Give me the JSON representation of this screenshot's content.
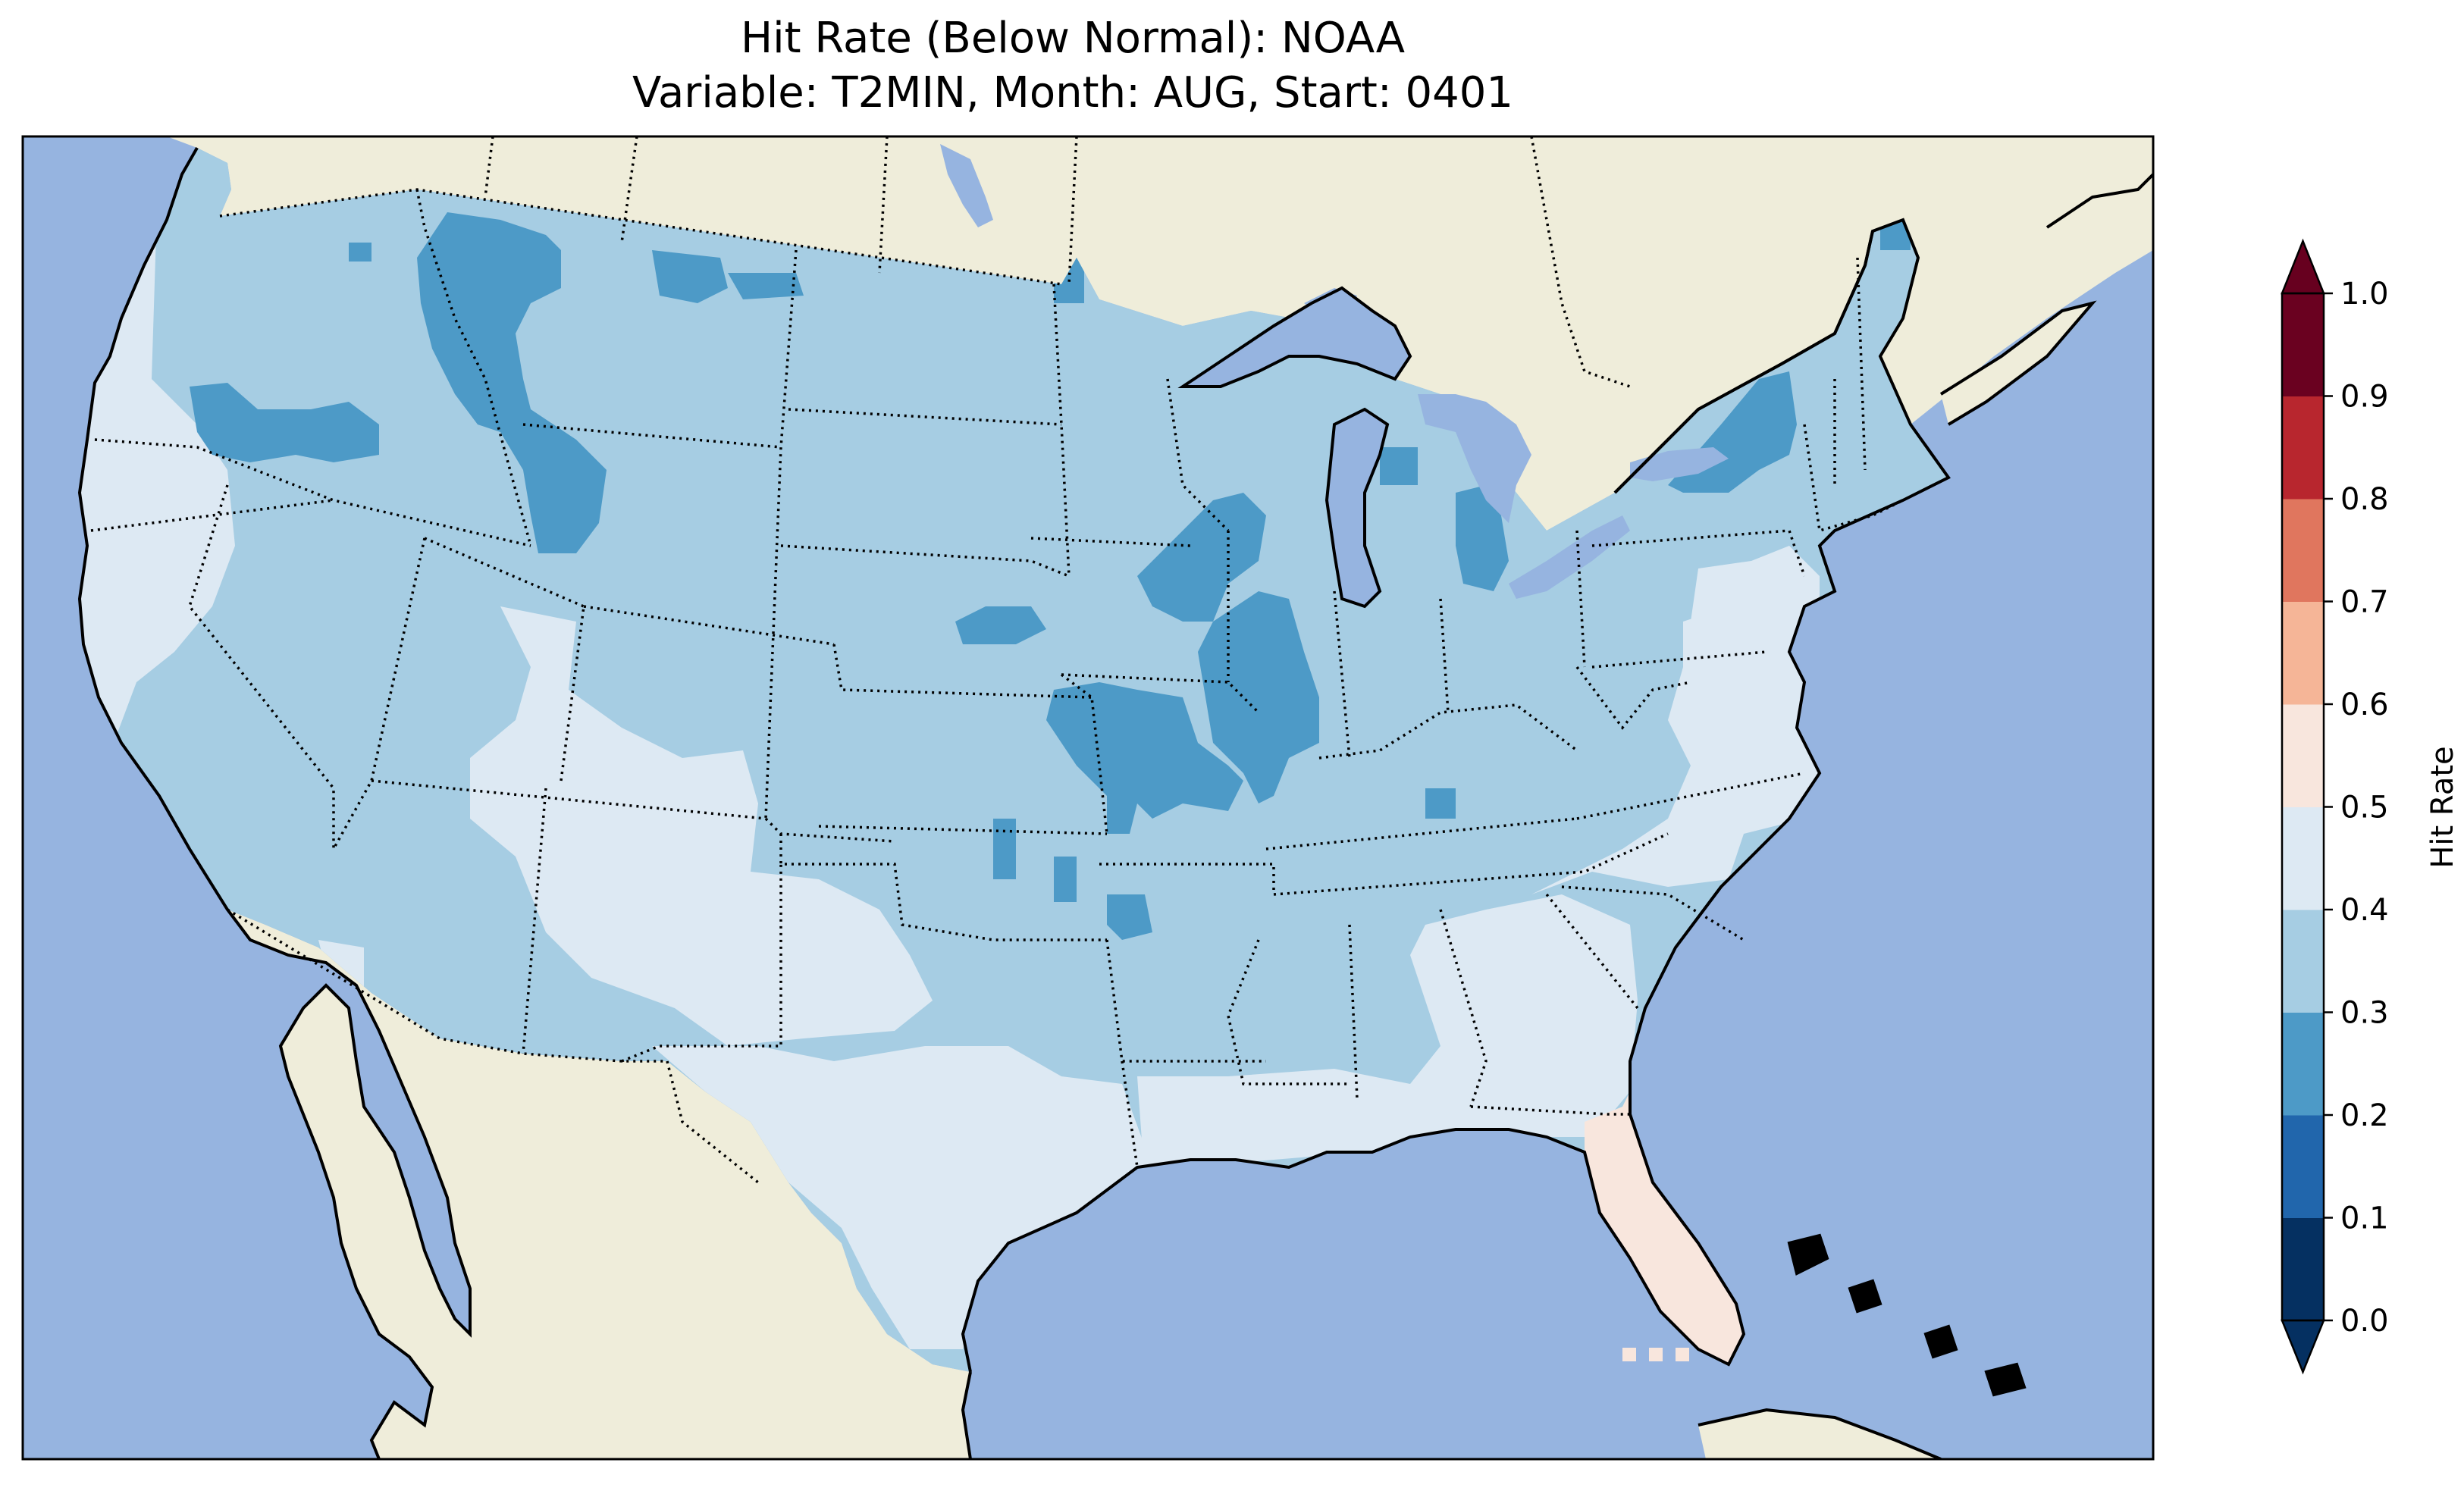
{
  "title_lines": [
    "Hit Rate (Below Normal): NOAA",
    "Variable: T2MIN, Month: AUG, Start: 0401"
  ],
  "colors": {
    "ocean": "#96b4e0",
    "land": "#efedda",
    "lake": "#96b4e0",
    "coast": "#000000",
    "border": "#000000"
  },
  "colorbar": {
    "label": "Hit Rate",
    "extend": "both",
    "levels": [
      0.0,
      0.1,
      0.2,
      0.3,
      0.4,
      0.5,
      0.6,
      0.7,
      0.8,
      0.9,
      1.0
    ],
    "tick_labels": [
      "0.0",
      "0.1",
      "0.2",
      "0.3",
      "0.4",
      "0.5",
      "0.6",
      "0.7",
      "0.8",
      "0.9",
      "1.0"
    ],
    "colors": [
      "#053061",
      "#2166ac",
      "#4393c3",
      "#92c5de",
      "#d1e5f0",
      "#f7f7f7",
      "#fddbc7",
      "#f4a582",
      "#d6604d",
      "#b2182b",
      "#67001f"
    ],
    "segment_colors": [
      "#053061",
      "#2166ac",
      "#4d9ac7",
      "#a6cde3",
      "#dde9f3",
      "#f8e6dd",
      "#f5b597",
      "#e0765e",
      "#b8262e",
      "#6a0120"
    ]
  },
  "map_regions": [
    {
      "name": "conus-base",
      "value": 0.35
    },
    {
      "name": "west-coast-band",
      "value": 0.45
    },
    {
      "name": "southwest-band",
      "value": 0.45
    },
    {
      "name": "texas-band",
      "value": 0.45
    },
    {
      "name": "gulf-coast-band",
      "value": 0.45
    },
    {
      "name": "southeast-band",
      "value": 0.45
    },
    {
      "name": "mid-atlantic-band",
      "value": 0.45
    },
    {
      "name": "florida",
      "value": 0.55
    },
    {
      "name": "idaho-montana-patch",
      "value": 0.25
    },
    {
      "name": "central-plains-patch",
      "value": 0.25
    },
    {
      "name": "illinois-patch",
      "value": 0.25
    },
    {
      "name": "iowa-minnesota-patch",
      "value": 0.25
    },
    {
      "name": "oregon-patch",
      "value": 0.25
    },
    {
      "name": "pennsylvania-ny-patch",
      "value": 0.25
    },
    {
      "name": "maine-patch",
      "value": 0.25
    },
    {
      "name": "michigan-patch",
      "value": 0.25
    }
  ]
}
